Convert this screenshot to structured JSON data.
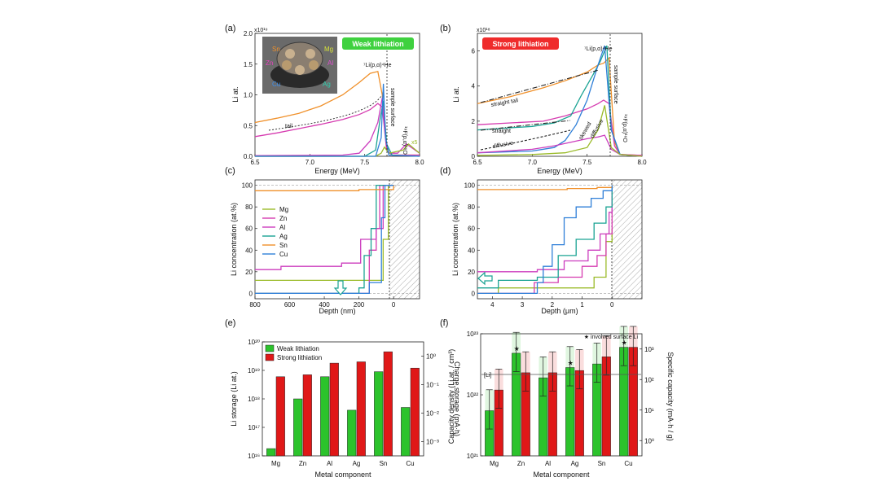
{
  "colors": {
    "Mg": "#9bbb2a",
    "Zn": "#d63bb0",
    "Al": "#cc3dbe",
    "Ag": "#1aa393",
    "Sn": "#f0902a",
    "Cu": "#2f7fd8",
    "weak": "#2cc32c",
    "strong": "#e01818",
    "weak_tag": "#3fd13f",
    "strong_tag": "#ef2b2b"
  },
  "chart_data": [
    {
      "panel_label": "(a)",
      "type": "line",
      "tag": "Weak lithiation",
      "xlabel": "Energy (MeV)",
      "ylabel": "Li at.",
      "yexp": "x10¹⁹",
      "xlim": [
        6.5,
        8.0
      ],
      "ylim": [
        0,
        2.0
      ],
      "xticks": [
        "6.5",
        "7.0",
        "7.5",
        "8.0"
      ],
      "yticks": [
        "0.0",
        "0.5",
        "1.0",
        "1.5",
        "2.0"
      ],
      "annotations": {
        "peak": "⁷Li(p,α)⁴He",
        "surface": "sample surface",
        "fluorine": "¹⁹F(p,α)¹⁶O",
        "tail": "tail",
        "x5": "x5"
      },
      "inset_labels": [
        "Sn",
        "Mg",
        "Zn",
        "Al",
        "Cu",
        "Ag"
      ],
      "series": [
        {
          "name": "Sn",
          "x": [
            6.5,
            6.7,
            6.9,
            7.1,
            7.3,
            7.45,
            7.55,
            7.62,
            7.66,
            7.7,
            7.75,
            8.0
          ],
          "y": [
            0.55,
            0.62,
            0.7,
            0.82,
            1.0,
            1.2,
            1.35,
            1.38,
            1.0,
            0.1,
            0.02,
            0.02
          ]
        },
        {
          "name": "Zn",
          "x": [
            6.5,
            6.7,
            6.9,
            7.1,
            7.3,
            7.45,
            7.55,
            7.62,
            7.66,
            7.7,
            7.75,
            8.0
          ],
          "y": [
            0.32,
            0.38,
            0.45,
            0.52,
            0.6,
            0.68,
            0.76,
            0.86,
            0.8,
            0.1,
            0.02,
            0.02
          ]
        },
        {
          "name": "Al",
          "x": [
            6.5,
            7.3,
            7.45,
            7.55,
            7.62,
            7.66,
            7.69,
            7.72,
            7.8,
            7.88,
            8.0
          ],
          "y": [
            0.01,
            0.02,
            0.05,
            0.25,
            0.55,
            0.95,
            0.3,
            0.05,
            0.05,
            0.2,
            0.05
          ]
        },
        {
          "name": "Ag",
          "x": [
            6.5,
            7.5,
            7.6,
            7.64,
            7.67,
            7.7,
            7.75,
            8.0
          ],
          "y": [
            0.0,
            0.0,
            0.1,
            0.6,
            0.9,
            0.2,
            0.02,
            0.0
          ]
        },
        {
          "name": "Mg",
          "x": [
            6.5,
            7.6,
            7.65,
            7.68,
            7.72,
            7.85,
            7.9,
            8.0
          ],
          "y": [
            0.0,
            0.0,
            0.05,
            0.15,
            0.05,
            0.1,
            0.2,
            0.05
          ]
        },
        {
          "name": "Cu",
          "x": [
            6.5,
            7.6,
            7.65,
            7.67,
            7.69,
            7.72,
            8.0
          ],
          "y": [
            0.0,
            0.0,
            0.3,
            1.18,
            0.3,
            0.02,
            0.0
          ]
        }
      ]
    },
    {
      "panel_label": "(b)",
      "type": "line",
      "tag": "Strong lithiation",
      "xlabel": "Energy (MeV)",
      "ylabel": "Li at.",
      "yexp": "x10¹⁸",
      "xlim": [
        6.5,
        8.0
      ],
      "ylim": [
        0,
        7.0
      ],
      "xticks": [
        "6.5",
        "7.0",
        "7.5",
        "8.0"
      ],
      "yticks": [
        "0",
        "2",
        "4",
        "6"
      ],
      "annotations": {
        "peak": "⁷Li(p,α)⁴He",
        "surface": "sample surface",
        "fluorine": "¹⁹F(p,α)¹⁶O",
        "straight_tail": "straight tail",
        "straight": "straight",
        "diffusive": "diffusive",
        "diffusive2": "diffusive",
        "skewed": "skewed"
      },
      "series": [
        {
          "name": "Sn",
          "x": [
            6.5,
            6.8,
            7.1,
            7.3,
            7.5,
            7.6,
            7.65,
            7.7,
            7.75,
            7.8,
            8.0
          ],
          "y": [
            3.0,
            3.4,
            3.9,
            4.3,
            4.8,
            5.2,
            5.3,
            5.6,
            0.8,
            0.1,
            0.05
          ]
        },
        {
          "name": "Zn",
          "x": [
            6.5,
            6.8,
            7.1,
            7.3,
            7.5,
            7.6,
            7.65,
            7.7,
            7.75,
            7.8,
            8.0
          ],
          "y": [
            1.8,
            1.9,
            2.0,
            2.3,
            2.7,
            3.0,
            3.2,
            3.0,
            0.6,
            0.1,
            0.05
          ]
        },
        {
          "name": "Ag",
          "x": [
            6.5,
            7.0,
            7.2,
            7.35,
            7.45,
            7.55,
            7.62,
            7.68,
            7.72,
            7.8,
            8.0
          ],
          "y": [
            1.5,
            1.7,
            1.9,
            2.3,
            3.5,
            4.6,
            5.4,
            6.3,
            1.5,
            0.1,
            0.0
          ]
        },
        {
          "name": "Cu",
          "x": [
            6.5,
            7.0,
            7.2,
            7.3,
            7.4,
            7.5,
            7.6,
            7.66,
            7.72,
            7.8,
            8.0
          ],
          "y": [
            0.2,
            0.3,
            0.5,
            0.9,
            1.8,
            3.2,
            5.2,
            6.3,
            1.5,
            0.1,
            0.0
          ]
        },
        {
          "name": "Al",
          "x": [
            6.5,
            7.0,
            7.2,
            7.35,
            7.5,
            7.6,
            7.66,
            7.72,
            7.8,
            8.0
          ],
          "y": [
            0.2,
            0.4,
            0.6,
            0.8,
            1.0,
            1.1,
            1.2,
            0.4,
            0.1,
            0.0
          ]
        },
        {
          "name": "Mg",
          "x": [
            6.5,
            7.0,
            7.3,
            7.5,
            7.6,
            7.66,
            7.72,
            7.8,
            8.0
          ],
          "y": [
            0.05,
            0.1,
            0.2,
            0.5,
            1.5,
            2.9,
            0.5,
            0.1,
            0.0
          ]
        }
      ]
    },
    {
      "panel_label": "(c)",
      "type": "line",
      "xlabel": "Depth (nm)",
      "ylabel": "Li concentration (at.%)",
      "xlim": [
        800,
        -150
      ],
      "ylim": [
        -5,
        105
      ],
      "xticks": [
        "800",
        "600",
        "400",
        "200",
        "0"
      ],
      "yticks": [
        "0",
        "20",
        "40",
        "60",
        "80",
        "100"
      ],
      "legend": [
        "Mg",
        "Zn",
        "Al",
        "Ag",
        "Sn",
        "Cu"
      ],
      "series": [
        {
          "name": "Mg",
          "x": [
            800,
            120,
            60,
            30,
            0
          ],
          "y": [
            12,
            12,
            50,
            100,
            100
          ]
        },
        {
          "name": "Zn",
          "x": [
            800,
            150,
            140,
            100,
            80,
            0
          ],
          "y": [
            0,
            0,
            40,
            60,
            100,
            100
          ]
        },
        {
          "name": "Al",
          "x": [
            800,
            650,
            330,
            300,
            190,
            100,
            60,
            0
          ],
          "y": [
            22,
            25,
            25,
            28,
            50,
            60,
            100,
            100
          ]
        },
        {
          "name": "Ag",
          "x": [
            800,
            260,
            200,
            170,
            130,
            100,
            0
          ],
          "y": [
            0,
            0,
            5,
            35,
            60,
            100,
            100
          ]
        },
        {
          "name": "Sn",
          "x": [
            800,
            500,
            200,
            60,
            0
          ],
          "y": [
            95,
            95,
            96,
            96,
            100
          ]
        },
        {
          "name": "Cu",
          "x": [
            800,
            150,
            140,
            70,
            50,
            0
          ],
          "y": [
            0,
            0,
            10,
            70,
            100,
            100
          ]
        }
      ]
    },
    {
      "panel_label": "(d)",
      "type": "line",
      "xlabel": "Depth (μm)",
      "ylabel": "Li concentration (at.%)",
      "xlim": [
        4.5,
        -1.0
      ],
      "ylim": [
        -5,
        105
      ],
      "xticks": [
        "4",
        "3",
        "2",
        "1",
        "0"
      ],
      "yticks": [
        "0",
        "20",
        "40",
        "60",
        "80",
        "100"
      ],
      "series": [
        {
          "name": "Mg",
          "x": [
            4.5,
            3.9,
            3.8,
            0.9,
            0.6,
            0.2,
            0.0
          ],
          "y": [
            0,
            0,
            5,
            5,
            15,
            48,
            60
          ]
        },
        {
          "name": "Zn",
          "x": [
            4.5,
            2.7,
            2.6,
            1.8,
            1.0,
            0.5,
            0.2,
            0.0
          ],
          "y": [
            0,
            0,
            10,
            15,
            25,
            35,
            55,
            90
          ]
        },
        {
          "name": "Al",
          "x": [
            4.5,
            2.6,
            2.5,
            1.6,
            0.8,
            0.4,
            0.1,
            0.0
          ],
          "y": [
            20,
            20,
            22,
            30,
            40,
            55,
            75,
            100
          ]
        },
        {
          "name": "Ag",
          "x": [
            4.5,
            3.9,
            3.8,
            2.5,
            1.8,
            1.2,
            0.6,
            0.2,
            0.0
          ],
          "y": [
            5,
            5,
            12,
            15,
            35,
            50,
            65,
            80,
            100
          ]
        },
        {
          "name": "Sn",
          "x": [
            4.5,
            3.0,
            1.5,
            0.5,
            0.0
          ],
          "y": [
            96,
            96,
            97,
            98,
            100
          ]
        },
        {
          "name": "Cu",
          "x": [
            4.5,
            2.6,
            2.5,
            2.3,
            2.0,
            1.6,
            1.2,
            0.7,
            0.3,
            0.0
          ],
          "y": [
            0,
            0,
            10,
            25,
            45,
            70,
            80,
            88,
            95,
            100
          ]
        }
      ]
    },
    {
      "panel_label": "(e)",
      "type": "bar",
      "xlabel": "Metal component",
      "ylabel": "Li storage (Li at.)",
      "y2label": "Charge storage (mA·h)",
      "categories": [
        "Mg",
        "Zn",
        "Al",
        "Ag",
        "Sn",
        "Cu"
      ],
      "series": [
        {
          "name": "Weak lithiation",
          "values": [
            1.8e+16,
            1e+18,
            6e+18,
            4e+17,
            9e+18,
            5e+17
          ]
        },
        {
          "name": "Strong lithiation",
          "values": [
            6e+18,
            7e+18,
            1.8e+19,
            2e+19,
            4.5e+19,
            1.2e+19
          ]
        }
      ],
      "ylim": [
        1e+16,
        1e+20
      ],
      "yticks": [
        "10¹⁶",
        "10¹⁷",
        "10¹⁸",
        "10¹⁹",
        "10²⁰"
      ],
      "y2ticks": [
        "10⁻³",
        "10⁻²",
        "10⁻¹",
        "10⁰"
      ]
    },
    {
      "panel_label": "(f)",
      "type": "bar",
      "xlabel": "Metal component",
      "ylabel": "Capacity density (Li at. / cm³)",
      "y2label": "Specific capacity (mA·h / g)",
      "categories": [
        "Mg",
        "Zn",
        "Al",
        "Ag",
        "Sn",
        "Cu"
      ],
      "series": [
        {
          "name": "Weak lithiation",
          "values": [
            5.5e+21,
            4.8e+22,
            1.9e+22,
            2.8e+22,
            3.2e+22,
            6e+22
          ]
        },
        {
          "name": "Strong lithiation",
          "values": [
            1.2e+22,
            2.3e+22,
            2.3e+22,
            2.5e+22,
            4.2e+22,
            6e+22
          ]
        }
      ],
      "starred": [
        "Zn",
        "Ag",
        "Cu"
      ],
      "li_line_label": "[Li]",
      "star_note": "★ involved surface Li",
      "ylim": [
        1e+21,
        1e+23
      ],
      "yticks": [
        "10²¹",
        "10²²",
        "10²³"
      ],
      "y2ticks": [
        "10⁰",
        "10¹",
        "10²",
        "10³"
      ]
    }
  ]
}
